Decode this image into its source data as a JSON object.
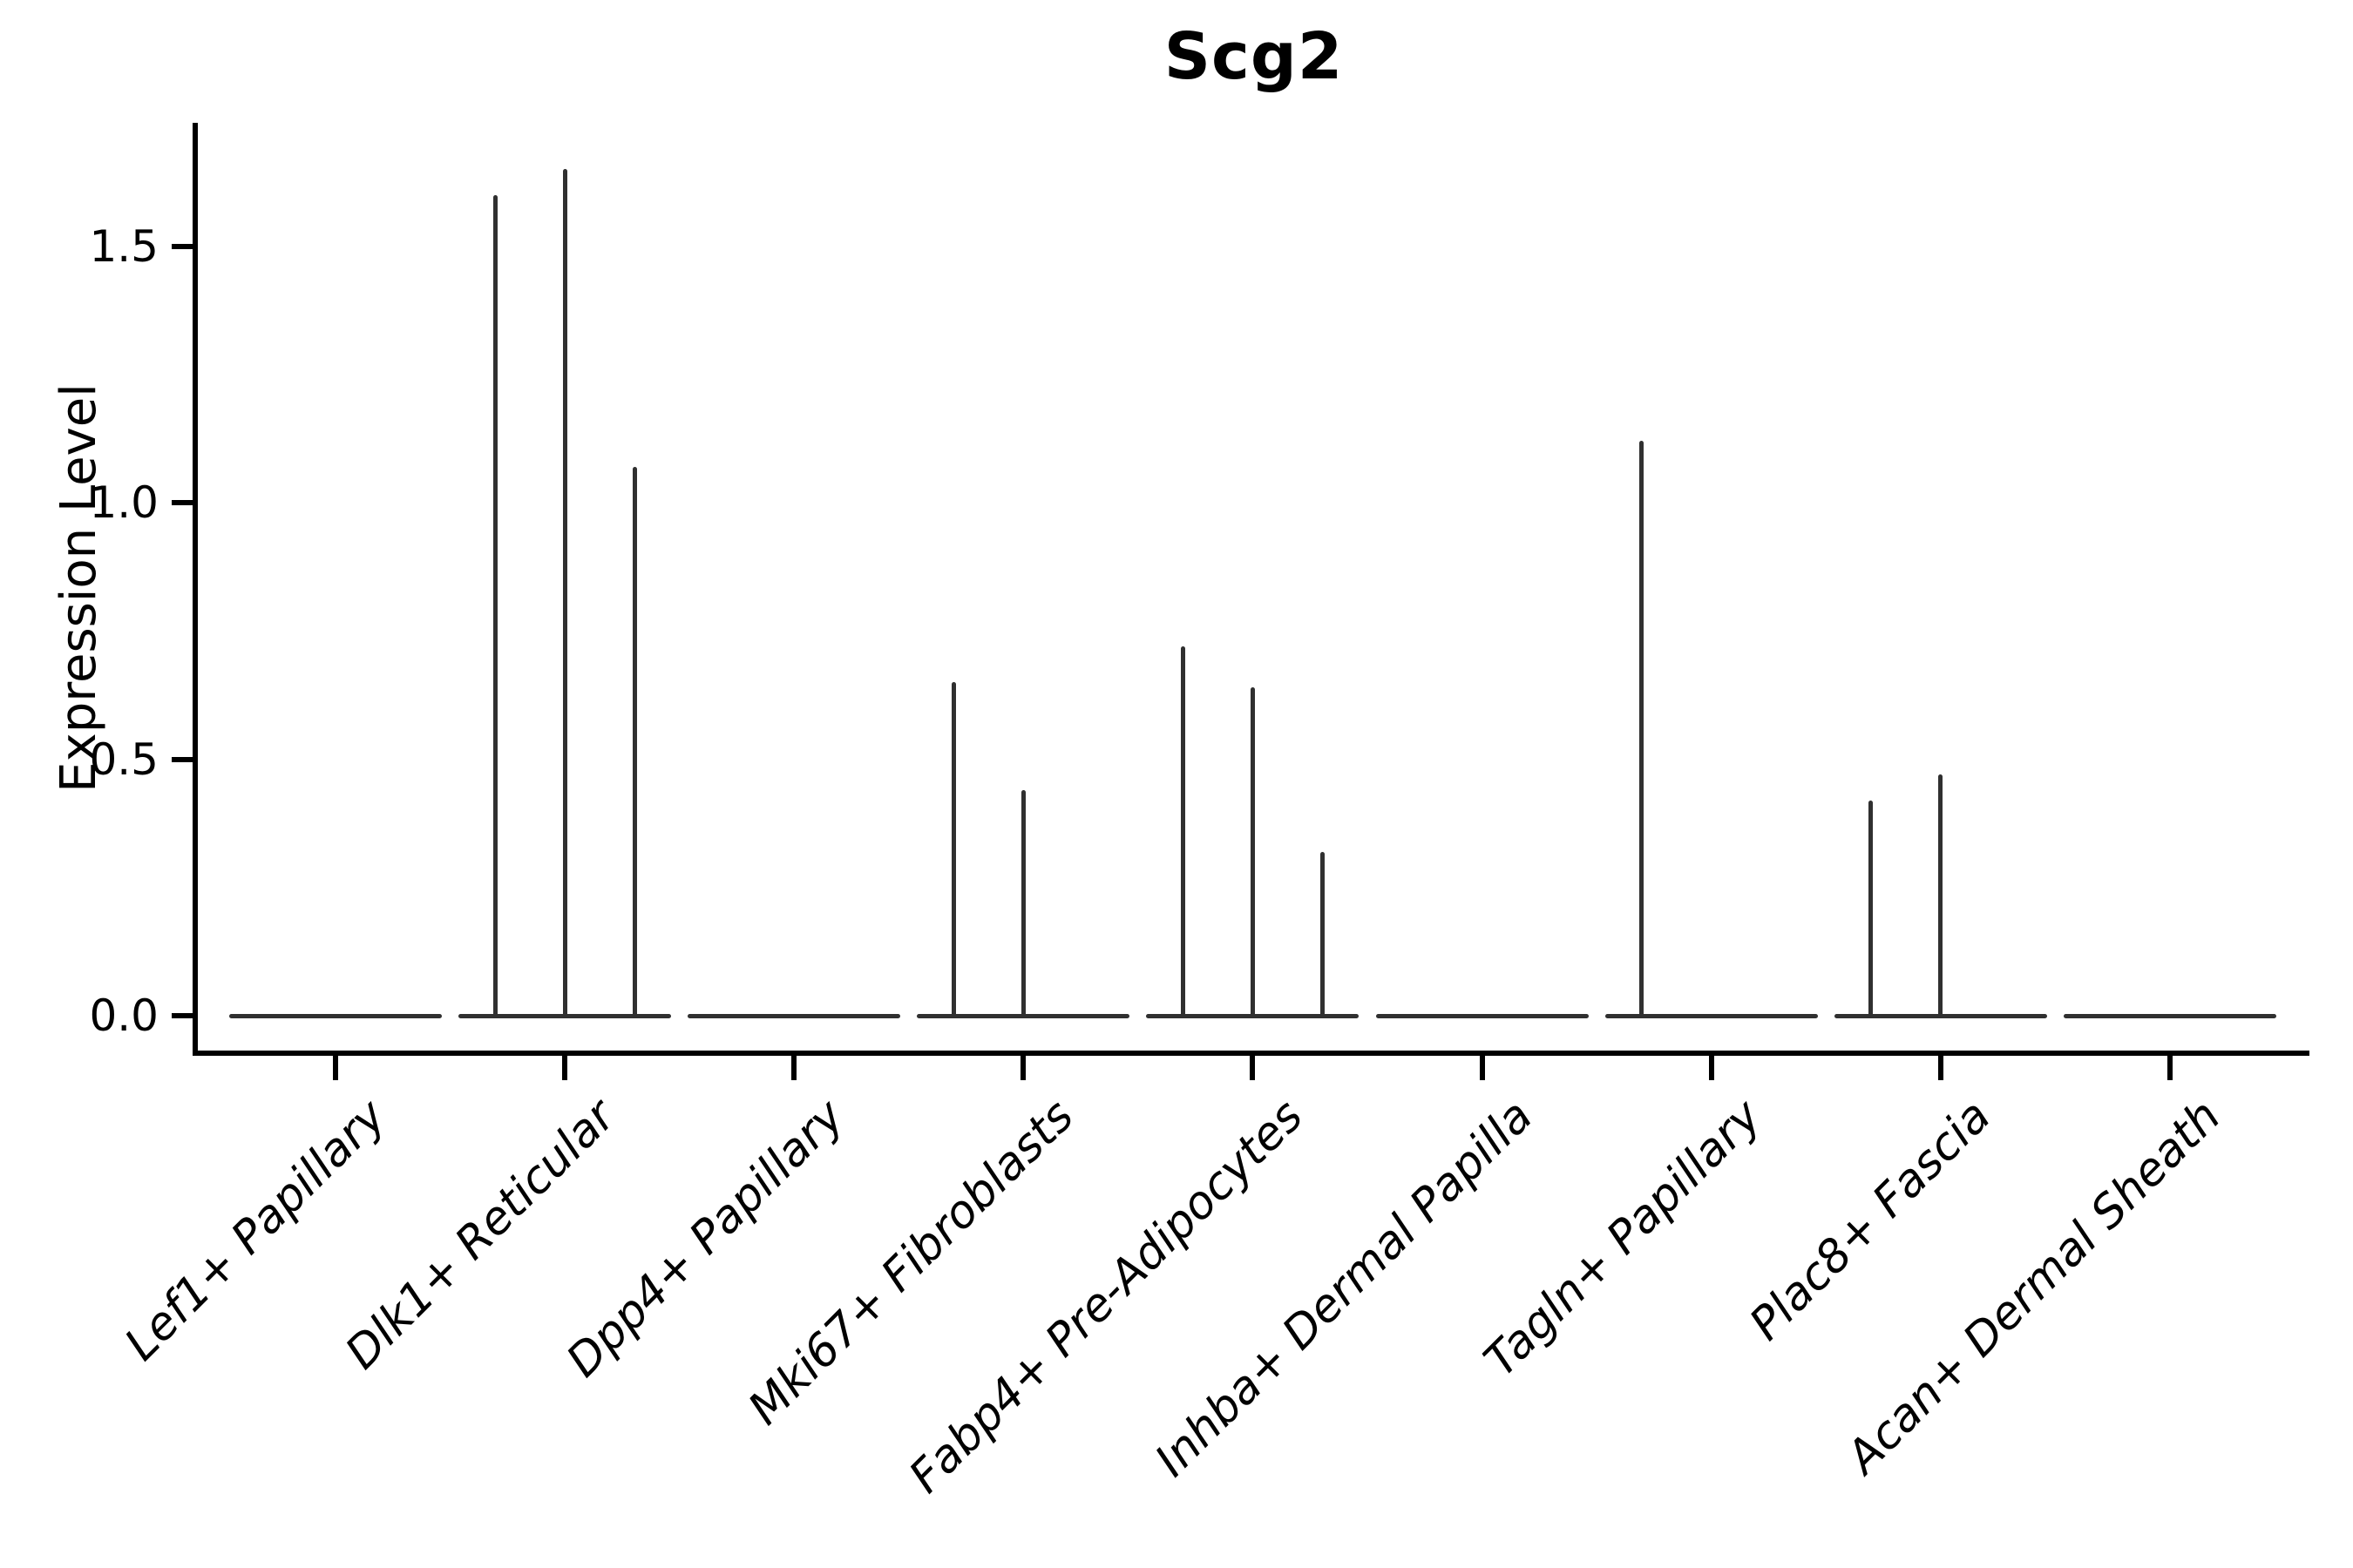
{
  "title": "Scg2",
  "axes": {
    "ylabel": "Expression Level",
    "ytick_labels": [
      "0.0",
      "0.5",
      "1.0",
      "1.5"
    ]
  },
  "chart_data": {
    "type": "violin",
    "title": "Scg2",
    "xlabel": "",
    "ylabel": "Expression Level",
    "categories": [
      "Lef1+ Papillary",
      "Dlk1+ Reticular",
      "Dpp4+ Papillary",
      "Mki67+ Fibroblasts",
      "Fabp4+ Pre-Adipocytes",
      "Inhba+ Dermal Papilla",
      "Tagln+ Papillary",
      "Plac8+ Fascia",
      "Acan+ Dermal Sheath"
    ],
    "violins_per_category": 3,
    "series": [
      {
        "category": "Lef1+ Papillary",
        "max_values": [
          0,
          0,
          0
        ]
      },
      {
        "category": "Dlk1+ Reticular",
        "max_values": [
          1.6,
          1.65,
          1.07
        ]
      },
      {
        "category": "Dpp4+ Papillary",
        "max_values": [
          0,
          0,
          0
        ]
      },
      {
        "category": "Mki67+ Fibroblasts",
        "max_values": [
          0.65,
          0.44,
          0
        ]
      },
      {
        "category": "Fabp4+ Pre-Adipocytes",
        "max_values": [
          0.72,
          0.64,
          0.32
        ]
      },
      {
        "category": "Inhba+ Dermal Papilla",
        "max_values": [
          0,
          0,
          0
        ]
      },
      {
        "category": "Tagln+ Papillary",
        "max_values": [
          1.12,
          0,
          0
        ]
      },
      {
        "category": "Plac8+ Fascia",
        "max_values": [
          0.42,
          0.47,
          0
        ]
      },
      {
        "category": "Acan+ Dermal Sheath",
        "max_values": [
          0,
          0,
          0
        ]
      }
    ],
    "yticks": [
      0.0,
      0.5,
      1.0,
      1.5
    ],
    "ytick_labels": [
      "0.0",
      "0.5",
      "1.0",
      "1.5"
    ],
    "ylim": [
      -0.07,
      1.74
    ],
    "grid": false,
    "legend": "none",
    "x_tick_label_rotation_deg": 45,
    "x_tick_label_style": "italic",
    "violin_color": "#303030",
    "axis_color": "#000000",
    "text_color": "#000000",
    "background_color": "#ffffff"
  }
}
